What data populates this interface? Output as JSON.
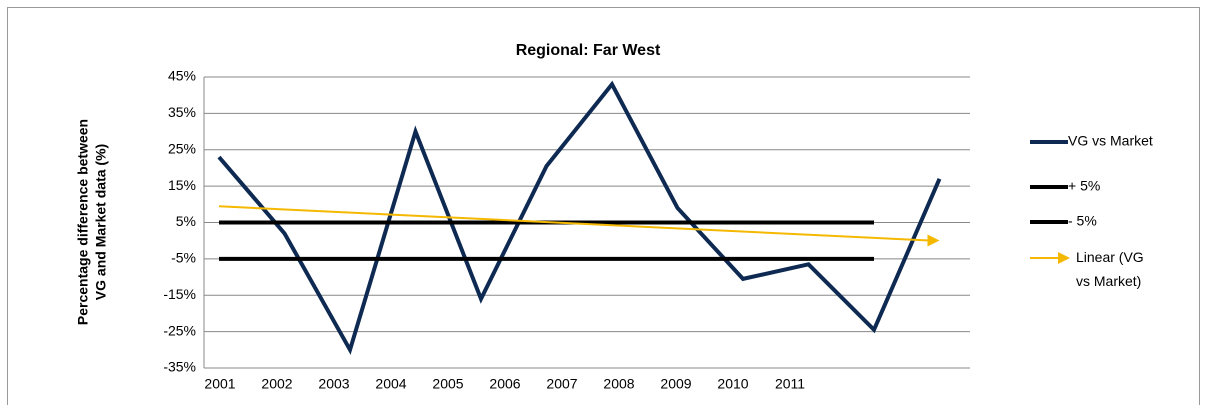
{
  "chart_data": {
    "type": "line",
    "title": "Regional: Far West",
    "y_label": [
      "Percentage difference between",
      "VG and Market data (%)"
    ],
    "categories": [
      "2001",
      "2002",
      "2003",
      "2004",
      "2005",
      "2006",
      "2007",
      "2008",
      "2009",
      "2010",
      "2011",
      null
    ],
    "series": [
      {
        "name": "VG vs Market",
        "color": "#0e2a52",
        "values": [
          23,
          2,
          -30,
          30,
          -16,
          20.5,
          43,
          9,
          -10.5,
          -6.5,
          -24.5,
          17
        ]
      },
      {
        "name": "+ 5%",
        "color": "#000000",
        "values": [
          5,
          5,
          5,
          5,
          5,
          5,
          5,
          5,
          5,
          5,
          5,
          null
        ]
      },
      {
        "name": "- 5%",
        "color": "#000000",
        "values": [
          -5,
          -5,
          -5,
          -5,
          -5,
          -5,
          -5,
          -5,
          -5,
          -5,
          -5,
          null
        ]
      }
    ],
    "trendline": {
      "name": "Linear (VG vs Market)",
      "color": "#f5b800",
      "of_series": 0
    },
    "ylim": [
      -35,
      45
    ],
    "yticks": [
      {
        "value": 45,
        "label": "45%"
      },
      {
        "value": 35,
        "label": "35%"
      },
      {
        "value": 25,
        "label": "25%"
      },
      {
        "value": 15,
        "label": "15%"
      },
      {
        "value": 5,
        "label": "5%"
      },
      {
        "value": -5,
        "label": "-5%"
      },
      {
        "value": -15,
        "label": "-15%"
      },
      {
        "value": -25,
        "label": "-25%"
      },
      {
        "value": -35,
        "label": "-35%"
      }
    ],
    "grid": true,
    "legend": "right"
  }
}
